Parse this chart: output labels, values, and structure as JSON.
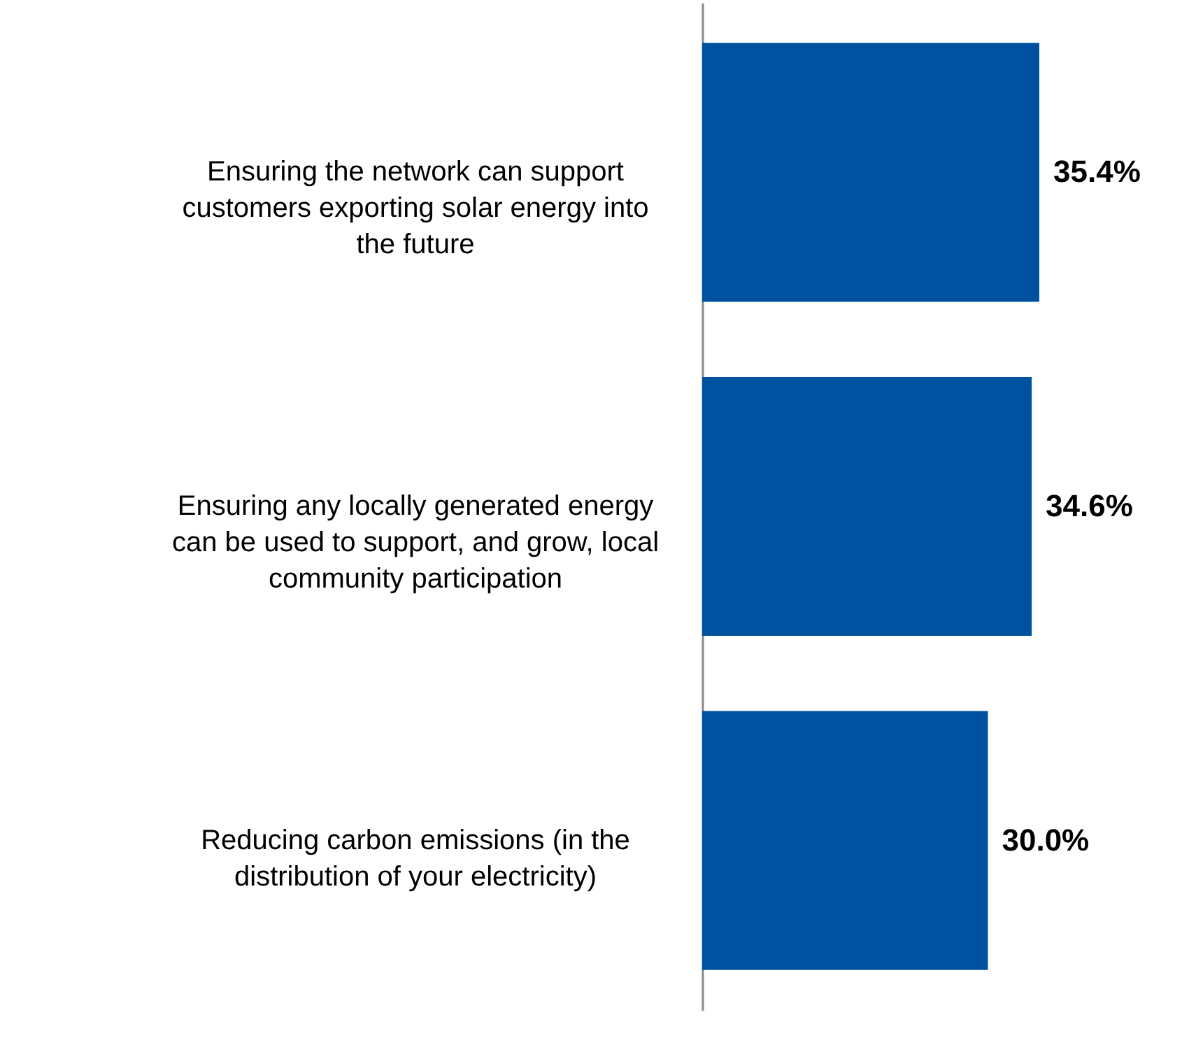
{
  "chart_data": {
    "type": "bar",
    "orientation": "horizontal",
    "categories": [
      "Ensuring the network can support customers exporting solar energy into the future",
      "Ensuring any locally generated energy can be used to support, and grow, local community participation",
      "Reducing carbon emissions (in the distribution of your electricity)"
    ],
    "values": [
      35.4,
      34.6,
      30.0
    ],
    "value_labels": [
      "35.4%",
      "34.6%",
      "30.0%"
    ],
    "color": "#0051a0",
    "grid": false
  }
}
